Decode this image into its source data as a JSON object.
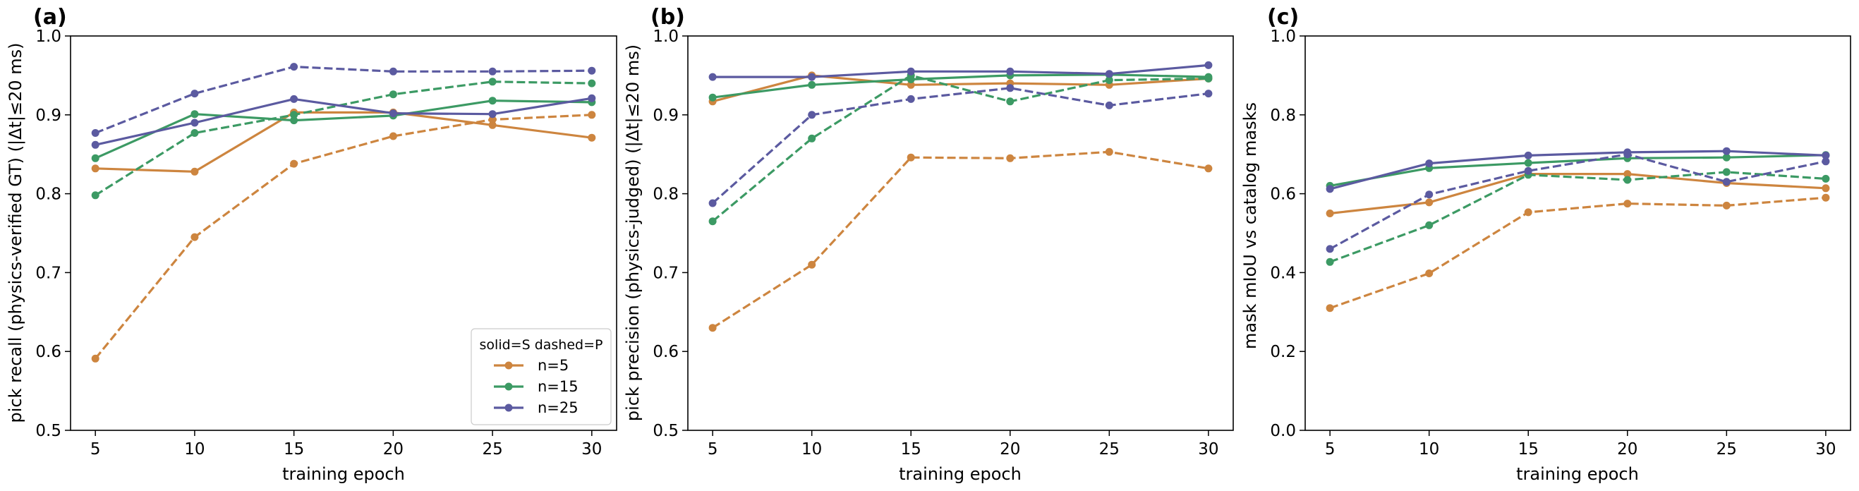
{
  "colors": {
    "n=5": "#cd853f",
    "n=15": "#3c9a64",
    "n=25": "#5b5aa0"
  },
  "legend": {
    "title": "solid=S dashed=P",
    "entries": [
      "n=5",
      "n=15",
      "n=25"
    ],
    "placement": "lower-right of panel (a)"
  },
  "chart_data": [
    {
      "type": "line",
      "panel_label": "(a)",
      "xlabel": "training epoch",
      "ylabel": "pick recall (physics-verified GT) (|Δt|≤20 ms)",
      "x": [
        5,
        10,
        15,
        20,
        25,
        30
      ],
      "xticks": [
        5,
        10,
        15,
        20,
        25,
        30
      ],
      "xlim": [
        3.75,
        31.25
      ],
      "ylim": [
        0.5,
        1.0
      ],
      "yticks": [
        0.5,
        0.6,
        0.7,
        0.8,
        0.9,
        1.0
      ],
      "ytick_labels": [
        "0.5",
        "0.6",
        "0.7",
        "0.8",
        "0.9",
        "1.0"
      ],
      "series": [
        {
          "group": "n=5",
          "style": "solid",
          "values": [
            0.832,
            0.828,
            0.903,
            0.903,
            0.887,
            0.871
          ]
        },
        {
          "group": "n=5",
          "style": "dashed",
          "values": [
            0.591,
            0.745,
            0.838,
            0.873,
            0.894,
            0.9
          ]
        },
        {
          "group": "n=15",
          "style": "solid",
          "values": [
            0.845,
            0.901,
            0.893,
            0.899,
            0.918,
            0.916
          ]
        },
        {
          "group": "n=15",
          "style": "dashed",
          "values": [
            0.798,
            0.877,
            0.9,
            0.926,
            0.942,
            0.94
          ]
        },
        {
          "group": "n=25",
          "style": "solid",
          "values": [
            0.862,
            0.89,
            0.92,
            0.902,
            0.901,
            0.921
          ]
        },
        {
          "group": "n=25",
          "style": "dashed",
          "values": [
            0.877,
            0.927,
            0.961,
            0.955,
            0.955,
            0.956
          ]
        }
      ]
    },
    {
      "type": "line",
      "panel_label": "(b)",
      "xlabel": "training epoch",
      "ylabel": "pick precision (physics-judged) (|Δt|≤20 ms)",
      "x": [
        5,
        10,
        15,
        20,
        25,
        30
      ],
      "xticks": [
        5,
        10,
        15,
        20,
        25,
        30
      ],
      "xlim": [
        3.75,
        31.25
      ],
      "ylim": [
        0.5,
        1.0
      ],
      "yticks": [
        0.5,
        0.6,
        0.7,
        0.8,
        0.9,
        1.0
      ],
      "ytick_labels": [
        "0.5",
        "0.6",
        "0.7",
        "0.8",
        "0.9",
        "1.0"
      ],
      "series": [
        {
          "group": "n=5",
          "style": "solid",
          "values": [
            0.917,
            0.95,
            0.938,
            0.94,
            0.938,
            0.946
          ]
        },
        {
          "group": "n=5",
          "style": "dashed",
          "values": [
            0.63,
            0.71,
            0.846,
            0.845,
            0.853,
            0.832
          ]
        },
        {
          "group": "n=15",
          "style": "solid",
          "values": [
            0.922,
            0.938,
            0.945,
            0.95,
            0.951,
            0.948
          ]
        },
        {
          "group": "n=15",
          "style": "dashed",
          "values": [
            0.765,
            0.87,
            0.95,
            0.917,
            0.944,
            0.946
          ]
        },
        {
          "group": "n=25",
          "style": "solid",
          "values": [
            0.948,
            0.948,
            0.955,
            0.955,
            0.952,
            0.963
          ]
        },
        {
          "group": "n=25",
          "style": "dashed",
          "values": [
            0.788,
            0.9,
            0.92,
            0.934,
            0.912,
            0.927
          ]
        }
      ]
    },
    {
      "type": "line",
      "panel_label": "(c)",
      "xlabel": "training epoch",
      "ylabel": "mask mIoU vs catalog masks",
      "x": [
        5,
        10,
        15,
        20,
        25,
        30
      ],
      "xticks": [
        5,
        10,
        15,
        20,
        25,
        30
      ],
      "xlim": [
        3.75,
        31.25
      ],
      "ylim": [
        0.0,
        1.0
      ],
      "yticks": [
        0.0,
        0.2,
        0.4,
        0.6,
        0.8,
        1.0
      ],
      "ytick_labels": [
        "0.0",
        "0.2",
        "0.4",
        "0.6",
        "0.8",
        "1.0"
      ],
      "series": [
        {
          "group": "n=5",
          "style": "solid",
          "values": [
            0.55,
            0.578,
            0.65,
            0.65,
            0.627,
            0.614
          ]
        },
        {
          "group": "n=5",
          "style": "dashed",
          "values": [
            0.31,
            0.398,
            0.553,
            0.575,
            0.57,
            0.59
          ]
        },
        {
          "group": "n=15",
          "style": "solid",
          "values": [
            0.62,
            0.665,
            0.678,
            0.69,
            0.692,
            0.698
          ]
        },
        {
          "group": "n=15",
          "style": "dashed",
          "values": [
            0.427,
            0.52,
            0.648,
            0.635,
            0.655,
            0.638
          ]
        },
        {
          "group": "n=25",
          "style": "solid",
          "values": [
            0.612,
            0.677,
            0.697,
            0.705,
            0.708,
            0.697
          ]
        },
        {
          "group": "n=25",
          "style": "dashed",
          "values": [
            0.46,
            0.598,
            0.658,
            0.7,
            0.63,
            0.682
          ]
        }
      ]
    }
  ]
}
